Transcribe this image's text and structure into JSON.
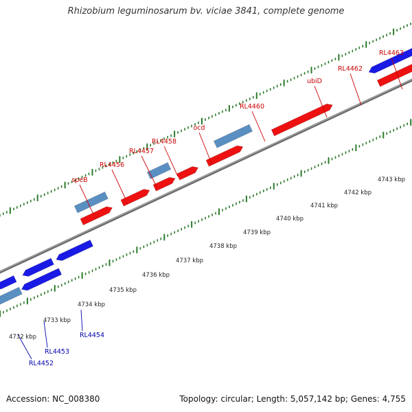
{
  "title": "Rhizobium leguminosarum bv. viciae 3841, complete genome",
  "footer": {
    "accession": "Accession: NC_008380",
    "topology": "Topology: circular; Length: 5,057,142 bp; Genes: 4,755"
  },
  "colors": {
    "forward_cds": "#ee1111",
    "forward_gene": "#5a8fc2",
    "reverse_cds": "#1a1ae6",
    "reverse_gene": "#5a8fc2",
    "forward_label": "#cc0000",
    "reverse_label": "#0000aa",
    "backbone": "#999999",
    "ticks": "#2a7a2a"
  },
  "kbp_labels": [
    "4732 kbp",
    "4733 kbp",
    "4734 kbp",
    "4735 kbp",
    "4736 kbp",
    "4737 kbp",
    "4738 kbp",
    "4739 kbp",
    "4740 kbp",
    "4741 kbp",
    "4742 kbp",
    "4743 kbp"
  ],
  "forward_gene_labels": [
    "speB",
    "RL4456",
    "RL4457",
    "RL4458",
    "ocd",
    "RL4460",
    "ubiD",
    "RL4462",
    "RL4463"
  ],
  "reverse_gene_labels": [
    "RL4452",
    "RL4453",
    "RL4454"
  ]
}
